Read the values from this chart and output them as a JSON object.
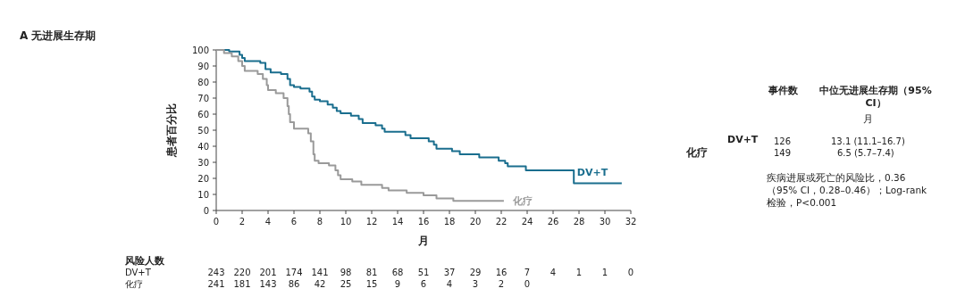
{
  "chart_data": {
    "type": "step",
    "title": "A 无进展生存期",
    "xlabel": "月",
    "ylabel": "患者百分比",
    "xlim": [
      0,
      32
    ],
    "xticks": [
      0,
      2,
      4,
      6,
      8,
      10,
      12,
      14,
      16,
      18,
      20,
      22,
      24,
      26,
      28,
      30,
      32
    ],
    "ylim": [
      0,
      100
    ],
    "yticks": [
      0,
      10,
      20,
      30,
      40,
      50,
      60,
      70,
      80,
      90,
      100
    ],
    "grid": false,
    "line_style": "solid",
    "series": [
      {
        "name": "DV+T",
        "color": "#1a6e8e",
        "x": [
          0,
          1.0,
          1.8,
          2.0,
          2.2,
          3.4,
          3.8,
          4.2,
          5.0,
          5.5,
          5.7,
          6.0,
          6.5,
          7.2,
          7.4,
          7.6,
          8.0,
          8.6,
          9.0,
          9.3,
          9.6,
          10.4,
          11.0,
          11.3,
          12.3,
          12.8,
          13.0,
          14.6,
          15.0,
          16.4,
          16.8,
          17.0,
          18.2,
          18.8,
          20.3,
          21.8,
          22.3,
          22.5,
          23.9,
          27.6,
          31.3
        ],
        "values": [
          100,
          99,
          97,
          95,
          93,
          92,
          88,
          86,
          85,
          82,
          78,
          77,
          76,
          74,
          71,
          69,
          68,
          66,
          64,
          62,
          60.5,
          59,
          57,
          54.5,
          53,
          51,
          49,
          47,
          45,
          43,
          41,
          38.5,
          37,
          35,
          33,
          31,
          29.5,
          27.5,
          25,
          17,
          17
        ]
      },
      {
        "name": "化疗",
        "color": "#9a9a9a",
        "x": [
          0,
          0.6,
          1.2,
          1.7,
          2.0,
          2.2,
          3.2,
          3.6,
          3.9,
          4.0,
          4.6,
          5.2,
          5.5,
          5.6,
          5.7,
          6.0,
          7.1,
          7.3,
          7.5,
          7.6,
          7.9,
          8.7,
          9.2,
          9.4,
          9.6,
          10.5,
          11.2,
          12.8,
          13.3,
          14.7,
          16.0,
          17.0,
          18.3,
          22.2
        ],
        "values": [
          100,
          98,
          96,
          93,
          90,
          87,
          85,
          82,
          78,
          75,
          73,
          70,
          65,
          60,
          55,
          51,
          48,
          43,
          35,
          31,
          29.5,
          28,
          25,
          22,
          19.5,
          18,
          16,
          14,
          12.5,
          11,
          9.5,
          7.5,
          6,
          6
        ]
      }
    ],
    "annotations": [
      "风险人数",
      "DV+T 243 220 201 174 141 98 81 68 51 37 29 16 7 4 1 1 0",
      "化疗 241 181 143 86 42 25 15 9 6 4 3 2 0",
      "事件数",
      "中位无进展生存期（95% CI）",
      "月",
      "DV+T",
      "126",
      "13.1 (11.1–16.7)",
      "化疗",
      "149",
      "6.5 (5.7–7.4)",
      "疾病进展或死亡的风险比，0.36（95% CI，0.28–0.46）；Log-rank检验，P<0.001"
    ]
  }
}
